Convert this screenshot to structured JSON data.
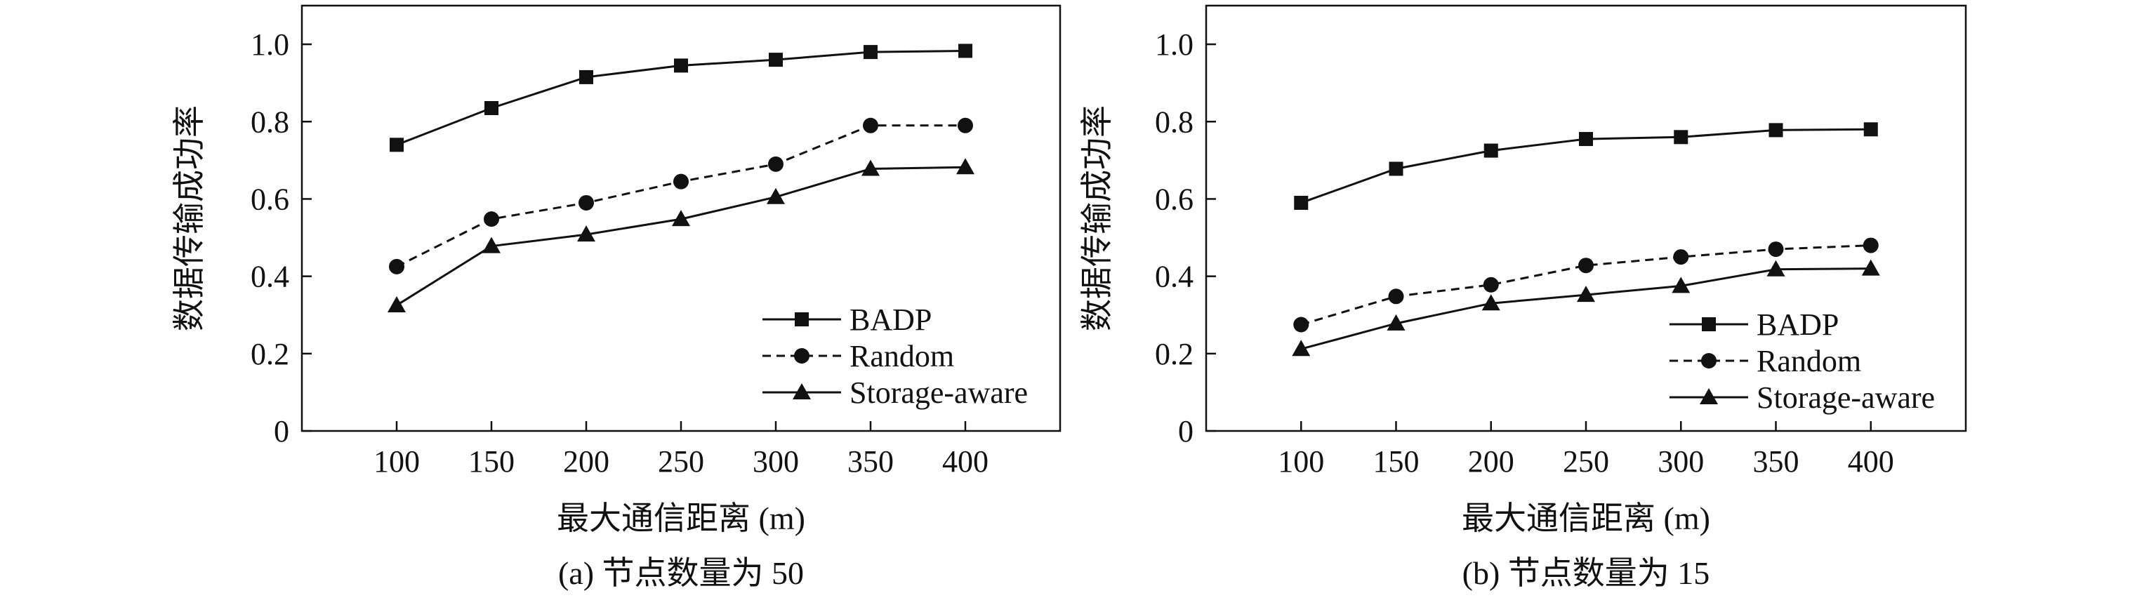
{
  "chart_data": [
    {
      "type": "line",
      "caption": "(a) 节点数量为 50",
      "xlabel": "最大通信距离 (m)",
      "ylabel": "数据传输成功率",
      "x": [
        100,
        150,
        200,
        250,
        300,
        350,
        400
      ],
      "xlim": [
        50,
        450
      ],
      "ylim": [
        0,
        1.1
      ],
      "xticks": [
        "100",
        "150",
        "200",
        "250",
        "300",
        "350",
        "400"
      ],
      "yticks": [
        "0",
        "0.2",
        "0.4",
        "0.6",
        "0.8",
        "1.0"
      ],
      "legend_position": "bottom-right",
      "grid": false,
      "series": [
        {
          "name": "BADP",
          "marker": "square",
          "dash": "solid",
          "values": [
            0.74,
            0.835,
            0.915,
            0.945,
            0.96,
            0.98,
            0.983
          ]
        },
        {
          "name": "Random",
          "marker": "circle",
          "dash": "dashed",
          "values": [
            0.425,
            0.548,
            0.59,
            0.645,
            0.69,
            0.79,
            0.79
          ]
        },
        {
          "name": "Storage-aware",
          "marker": "triangle",
          "dash": "solid",
          "values": [
            0.325,
            0.478,
            0.508,
            0.548,
            0.605,
            0.678,
            0.682
          ]
        }
      ]
    },
    {
      "type": "line",
      "caption": "(b) 节点数量为 15",
      "xlabel": "最大通信距离 (m)",
      "ylabel": "数据传输成功率",
      "x": [
        100,
        150,
        200,
        250,
        300,
        350,
        400
      ],
      "xlim": [
        50,
        450
      ],
      "ylim": [
        0,
        1.1
      ],
      "xticks": [
        "100",
        "150",
        "200",
        "250",
        "300",
        "350",
        "400"
      ],
      "yticks": [
        "0",
        "0.2",
        "0.4",
        "0.6",
        "0.8",
        "1.0"
      ],
      "legend_position": "bottom-right",
      "grid": false,
      "series": [
        {
          "name": "BADP",
          "marker": "square",
          "dash": "solid",
          "values": [
            0.59,
            0.678,
            0.725,
            0.755,
            0.76,
            0.778,
            0.78
          ]
        },
        {
          "name": "Random",
          "marker": "circle",
          "dash": "dashed",
          "values": [
            0.275,
            0.348,
            0.378,
            0.428,
            0.45,
            0.47,
            0.48
          ]
        },
        {
          "name": "Storage-aware",
          "marker": "triangle",
          "dash": "solid",
          "values": [
            0.212,
            0.278,
            0.33,
            0.352,
            0.375,
            0.418,
            0.42
          ]
        }
      ]
    }
  ]
}
